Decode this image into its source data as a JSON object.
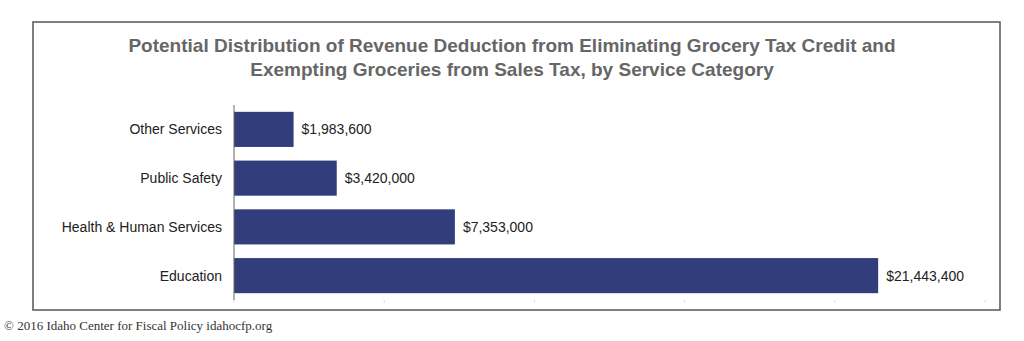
{
  "chart_data": {
    "type": "bar",
    "title": "Potential Distribution of Revenue Deduction from Eliminating Grocery Tax Credit and Exempting Groceries from Sales Tax, by Service Category",
    "categories": [
      "Other Services",
      "Public Safety",
      "Health & Human Services",
      "Education"
    ],
    "values": [
      1983600,
      3420000,
      7353000,
      21443400
    ],
    "value_labels": [
      "$1,983,600",
      "$3,420,000",
      "$7,353,000",
      "$21,443,400"
    ],
    "color": "#323e7c",
    "orientation": "horizontal",
    "xlim": [
      0,
      25000000
    ],
    "xticks": [
      0,
      5000000,
      10000000,
      15000000,
      20000000,
      25000000
    ],
    "tick_labels": false,
    "grid": false,
    "data_labels": true,
    "source": "© 2016 Idaho Center for Fiscal Policy idahocfp.org"
  }
}
